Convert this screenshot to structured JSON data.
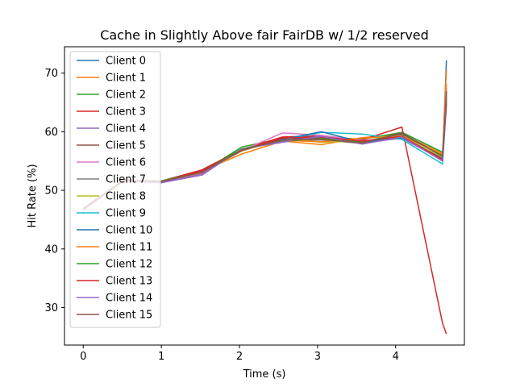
{
  "chart_data": {
    "type": "line",
    "title": "Cache in Slightly Above fair FairDB w/ 1/2 reserved",
    "xlabel": "Time (s)",
    "ylabel": "Hit Rate (%)",
    "xlim": [
      -0.24,
      4.88
    ],
    "ylim": [
      23.6,
      74.5
    ],
    "xticks": [
      0,
      1,
      2,
      3,
      4
    ],
    "yticks": [
      30,
      40,
      50,
      60,
      70
    ],
    "grid": false,
    "legend_position": "top-left",
    "x": [
      0.0,
      0.52,
      1.0,
      1.52,
      2.03,
      2.55,
      3.05,
      3.57,
      4.08,
      4.6,
      4.65
    ],
    "series": [
      {
        "name": "Client 0",
        "color": "#1f77b4",
        "values": [
          46.8,
          51.8,
          51.4,
          53.0,
          57.0,
          58.7,
          59.0,
          58.3,
          59.4,
          55.0,
          72.2
        ]
      },
      {
        "name": "Client 1",
        "color": "#ff7f0e",
        "values": [
          46.7,
          51.7,
          51.5,
          53.3,
          56.2,
          58.4,
          57.8,
          59.0,
          59.6,
          56.3,
          70.5
        ]
      },
      {
        "name": "Client 2",
        "color": "#2ca02c",
        "values": [
          46.9,
          51.8,
          51.5,
          53.1,
          57.4,
          58.9,
          59.2,
          58.7,
          59.9,
          56.5,
          66.8
        ]
      },
      {
        "name": "Client 3",
        "color": "#d62728",
        "values": [
          46.8,
          51.7,
          51.6,
          53.5,
          57.0,
          59.1,
          59.3,
          58.6,
          60.8,
          27.3,
          25.5
        ]
      },
      {
        "name": "Client 4",
        "color": "#9467bd",
        "values": [
          46.7,
          51.6,
          51.3,
          52.6,
          57.1,
          58.2,
          59.4,
          58.1,
          58.9,
          55.2,
          67.5
        ]
      },
      {
        "name": "Client 5",
        "color": "#8c564b",
        "values": [
          46.8,
          51.8,
          51.4,
          53.2,
          56.9,
          58.6,
          58.9,
          58.2,
          59.8,
          55.8,
          66.5
        ]
      },
      {
        "name": "Client 6",
        "color": "#e377c2",
        "values": [
          46.9,
          51.7,
          51.5,
          53.0,
          56.8,
          59.8,
          59.4,
          58.5,
          59.0,
          55.5,
          65.8
        ]
      },
      {
        "name": "Client 7",
        "color": "#7f7f7f",
        "values": [
          46.8,
          51.7,
          51.5,
          53.1,
          56.9,
          58.5,
          58.6,
          58.0,
          59.2,
          55.6,
          66.2
        ]
      },
      {
        "name": "Client 8",
        "color": "#bcbd22",
        "values": [
          46.7,
          51.8,
          51.4,
          53.0,
          56.7,
          58.8,
          58.2,
          58.4,
          59.1,
          55.7,
          65.0
        ]
      },
      {
        "name": "Client 9",
        "color": "#17becf",
        "values": [
          46.8,
          51.7,
          51.5,
          53.2,
          56.9,
          58.6,
          59.9,
          59.6,
          58.7,
          54.5,
          64.5
        ]
      },
      {
        "name": "Client 10",
        "color": "#1f77b4",
        "values": [
          46.9,
          51.8,
          51.4,
          53.1,
          56.8,
          58.7,
          60.0,
          58.2,
          59.0,
          55.4,
          65.2
        ]
      },
      {
        "name": "Client 11",
        "color": "#ff7f0e",
        "values": [
          46.8,
          51.6,
          51.5,
          53.0,
          56.9,
          58.5,
          58.3,
          58.9,
          59.3,
          56.1,
          68.2
        ]
      },
      {
        "name": "Client 12",
        "color": "#2ca02c",
        "values": [
          46.8,
          51.7,
          51.6,
          53.2,
          57.1,
          58.4,
          58.8,
          58.3,
          59.6,
          55.9,
          65.5
        ]
      },
      {
        "name": "Client 13",
        "color": "#d62728",
        "values": [
          46.7,
          51.8,
          51.4,
          53.3,
          56.8,
          58.9,
          59.1,
          58.4,
          59.2,
          55.3,
          64.8
        ]
      },
      {
        "name": "Client 14",
        "color": "#9467bd",
        "values": [
          46.8,
          51.7,
          51.3,
          52.8,
          57.0,
          58.3,
          59.2,
          57.9,
          59.1,
          55.0,
          66.0
        ]
      },
      {
        "name": "Client 15",
        "color": "#8c564b",
        "values": [
          46.9,
          51.7,
          51.5,
          53.1,
          56.9,
          58.6,
          58.7,
          58.1,
          59.7,
          55.8,
          66.9
        ]
      }
    ]
  }
}
